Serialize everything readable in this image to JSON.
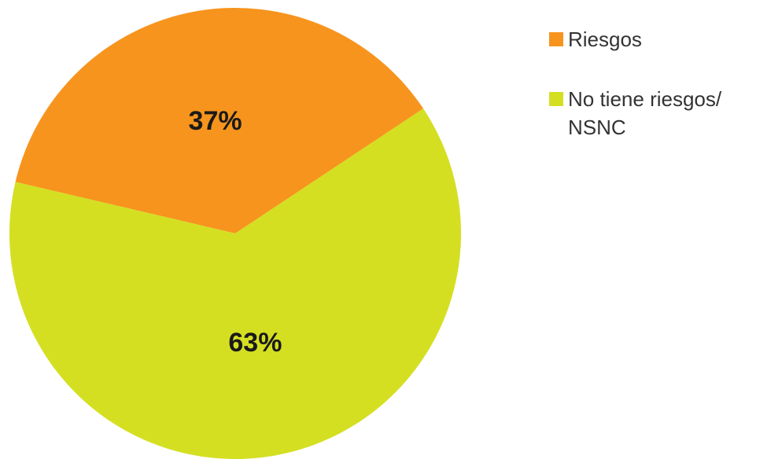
{
  "chart_data": {
    "type": "pie",
    "categories": [
      "Riesgos",
      "No tiene riesgos/ NSNC"
    ],
    "values": [
      37,
      63
    ],
    "value_labels": [
      "37%",
      "63%"
    ],
    "colors": [
      "#f7941d",
      "#d4df22"
    ]
  }
}
